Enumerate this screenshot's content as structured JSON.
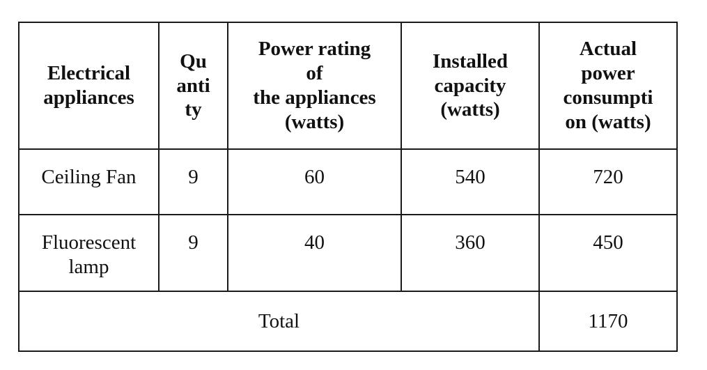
{
  "table": {
    "headers": [
      "Electrical\nappliances",
      "Qu\nanti\nty",
      "Power rating\nof\nthe appliances\n(watts)",
      "Installed\ncapacity\n(watts)",
      "Actual\npower\nconsumpti\non (watts)"
    ],
    "rows": [
      {
        "appliance": "Ceiling Fan",
        "quantity": "9",
        "power_rating": "60",
        "installed_capacity": "540",
        "actual_consumption": "720"
      },
      {
        "appliance": "Fluorescent\nlamp",
        "quantity": "9",
        "power_rating": "40",
        "installed_capacity": "360",
        "actual_consumption": "450"
      }
    ],
    "total": {
      "label": "Total",
      "value": "1170"
    }
  }
}
